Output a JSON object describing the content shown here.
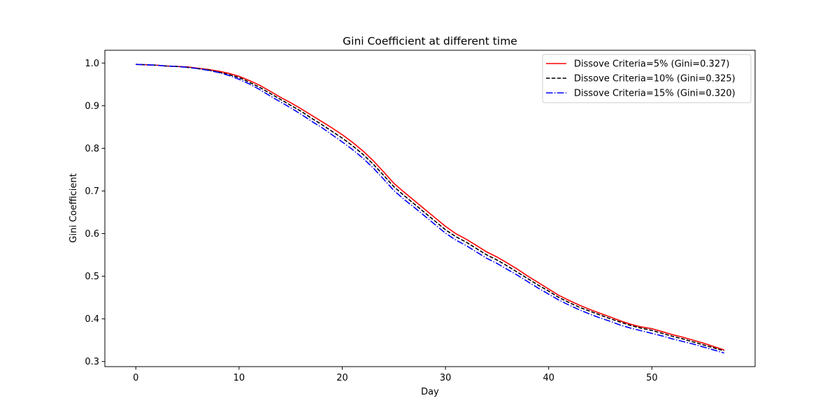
{
  "chart_data": {
    "type": "line",
    "title": "Gini Coefficient at different time",
    "xlabel": "Day",
    "ylabel": "Gini Coefficient",
    "xlim": [
      -3,
      60
    ],
    "ylim": [
      0.288,
      1.03
    ],
    "xticks": [
      0,
      10,
      20,
      30,
      40,
      50
    ],
    "yticks": [
      0.3,
      0.4,
      0.5,
      0.6,
      0.7,
      0.8,
      0.9,
      1.0
    ],
    "xtick_labels": [
      "0",
      "10",
      "20",
      "30",
      "40",
      "50"
    ],
    "ytick_labels": [
      "0.3",
      "0.4",
      "0.5",
      "0.6",
      "0.7",
      "0.8",
      "0.9",
      "1.0"
    ],
    "grid": false,
    "legend_position": "upper right",
    "x": [
      0,
      1,
      2,
      3,
      4,
      5,
      6,
      7,
      8,
      9,
      10,
      11,
      12,
      13,
      14,
      15,
      16,
      17,
      18,
      19,
      20,
      21,
      22,
      23,
      24,
      25,
      26,
      27,
      28,
      29,
      30,
      31,
      32,
      33,
      34,
      35,
      36,
      37,
      38,
      39,
      40,
      41,
      42,
      43,
      44,
      45,
      46,
      47,
      48,
      49,
      50,
      51,
      52,
      53,
      54,
      55,
      56,
      57
    ],
    "series": [
      {
        "name": "Dissove Criteria=5% (Gini=0.327)",
        "color": "#ff0000",
        "dash": "solid",
        "values": [
          0.997,
          0.996,
          0.995,
          0.993,
          0.992,
          0.991,
          0.988,
          0.985,
          0.981,
          0.976,
          0.969,
          0.959,
          0.948,
          0.934,
          0.92,
          0.907,
          0.893,
          0.878,
          0.863,
          0.848,
          0.832,
          0.814,
          0.794,
          0.771,
          0.745,
          0.718,
          0.697,
          0.677,
          0.657,
          0.637,
          0.617,
          0.6,
          0.587,
          0.572,
          0.557,
          0.545,
          0.531,
          0.516,
          0.5,
          0.485,
          0.47,
          0.455,
          0.443,
          0.432,
          0.422,
          0.413,
          0.404,
          0.395,
          0.387,
          0.381,
          0.377,
          0.37,
          0.363,
          0.357,
          0.35,
          0.343,
          0.335,
          0.327
        ]
      },
      {
        "name": "Dissove Criteria=10% (Gini=0.325)",
        "color": "#000000",
        "dash": "dashed",
        "values": [
          0.997,
          0.996,
          0.995,
          0.993,
          0.992,
          0.99,
          0.987,
          0.984,
          0.979,
          0.973,
          0.966,
          0.955,
          0.943,
          0.929,
          0.915,
          0.901,
          0.887,
          0.871,
          0.856,
          0.84,
          0.824,
          0.806,
          0.786,
          0.763,
          0.737,
          0.71,
          0.689,
          0.669,
          0.649,
          0.629,
          0.609,
          0.593,
          0.58,
          0.565,
          0.55,
          0.538,
          0.524,
          0.509,
          0.494,
          0.479,
          0.465,
          0.45,
          0.438,
          0.427,
          0.418,
          0.409,
          0.4,
          0.392,
          0.384,
          0.378,
          0.373,
          0.366,
          0.359,
          0.353,
          0.346,
          0.339,
          0.332,
          0.325
        ]
      },
      {
        "name": "Dissove Criteria=15% (Gini=0.320)",
        "color": "#0000ff",
        "dash": "dashdot",
        "values": [
          0.997,
          0.996,
          0.995,
          0.993,
          0.992,
          0.99,
          0.987,
          0.983,
          0.978,
          0.971,
          0.962,
          0.951,
          0.938,
          0.923,
          0.909,
          0.895,
          0.88,
          0.864,
          0.849,
          0.832,
          0.815,
          0.797,
          0.777,
          0.754,
          0.728,
          0.701,
          0.68,
          0.661,
          0.641,
          0.621,
          0.601,
          0.585,
          0.572,
          0.557,
          0.542,
          0.53,
          0.516,
          0.502,
          0.487,
          0.472,
          0.458,
          0.444,
          0.432,
          0.421,
          0.411,
          0.402,
          0.394,
          0.385,
          0.378,
          0.372,
          0.366,
          0.36,
          0.353,
          0.347,
          0.341,
          0.334,
          0.327,
          0.32
        ]
      }
    ]
  }
}
